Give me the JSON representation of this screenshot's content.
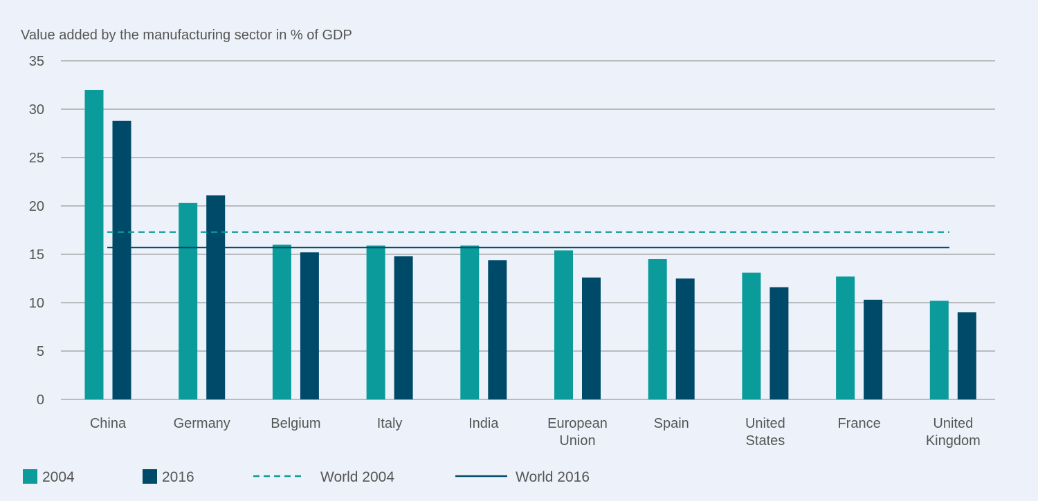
{
  "chart_data": {
    "type": "bar",
    "title": "",
    "ylabel": "Value added by the manufacturing sector in % of GDP",
    "xlabel": "",
    "ylim": [
      0,
      35
    ],
    "yticks": [
      0,
      5,
      10,
      15,
      20,
      25,
      30,
      35
    ],
    "categories": [
      [
        "China"
      ],
      [
        "Germany"
      ],
      [
        "Belgium"
      ],
      [
        "Italy"
      ],
      [
        "India"
      ],
      [
        "European",
        "Union"
      ],
      [
        "Spain"
      ],
      [
        "United",
        "States"
      ],
      [
        "France"
      ],
      [
        "United",
        "Kingdom"
      ]
    ],
    "series": [
      {
        "name": "2004",
        "kind": "bar",
        "color": "#0b9b9b",
        "values": [
          32.0,
          20.3,
          16.0,
          15.9,
          15.9,
          15.4,
          14.5,
          13.1,
          12.7,
          10.2
        ]
      },
      {
        "name": "2016",
        "kind": "bar",
        "color": "#004a69",
        "values": [
          28.8,
          21.1,
          15.2,
          14.8,
          14.4,
          12.6,
          12.5,
          11.6,
          10.3,
          9.0
        ]
      }
    ],
    "reference_lines": [
      {
        "name": "World 2004",
        "value": 17.3,
        "style": "dashed",
        "color": "#0b9b9b"
      },
      {
        "name": "World 2016",
        "value": 15.7,
        "style": "solid",
        "color": "#004a69"
      }
    ],
    "grid": true,
    "legend_position": "bottom",
    "gridline_color": "#9a9a9a"
  }
}
